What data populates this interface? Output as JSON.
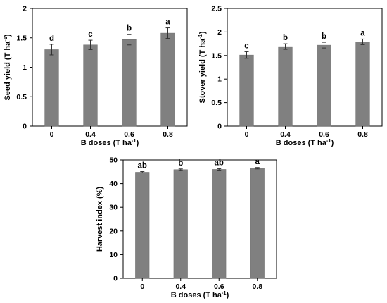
{
  "colors": {
    "bar": "#808080",
    "bar_edge": "#6e6e6e",
    "error_bar": "#333333",
    "frame": "#000000"
  },
  "chart_data": [
    {
      "type": "bar",
      "title": "",
      "xlabel": "B doses (T ha-1)",
      "xlabel_main": "B doses (T ha",
      "xlabel_sup": "-1",
      "xlabel_close": ")",
      "ylabel": "Seed yield (T ha-1)",
      "ylabel_main": "Seed yield (T ha",
      "ylabel_sup": "-1",
      "ylabel_close": ")",
      "categories": [
        "0",
        "0.4",
        "0.6",
        "0.8"
      ],
      "values": [
        1.3,
        1.38,
        1.47,
        1.58
      ],
      "errors": [
        0.09,
        0.08,
        0.09,
        0.09
      ],
      "significance": [
        "d",
        "c",
        "b",
        "a"
      ],
      "ylim": [
        0,
        2
      ],
      "yticks": [
        "0",
        "0.5",
        "1",
        "1.5",
        "2"
      ],
      "grid": false
    },
    {
      "type": "bar",
      "title": "",
      "xlabel": "B doses (T ha-1)",
      "xlabel_main": "B doses (T ha",
      "xlabel_sup": "-1",
      "xlabel_close": ")",
      "ylabel": "Stover yield (T ha-1)",
      "ylabel_main": "Stover yield (T ha",
      "ylabel_sup": "-1",
      "ylabel_close": ")",
      "categories": [
        "0",
        "0.4",
        "0.6",
        "0.8"
      ],
      "values": [
        1.51,
        1.69,
        1.72,
        1.79
      ],
      "errors": [
        0.07,
        0.06,
        0.06,
        0.06
      ],
      "significance": [
        "c",
        "b",
        "b",
        "a"
      ],
      "ylim": [
        0,
        2.5
      ],
      "yticks": [
        "0",
        "0.5",
        "1",
        "1.5",
        "2",
        "2.5"
      ],
      "grid": false
    },
    {
      "type": "bar",
      "title": "",
      "xlabel": "B doses (T ha-1)",
      "xlabel_main": "B doses (T ha",
      "xlabel_sup": "-1",
      "xlabel_close": ")",
      "ylabel": "Harvest index (%)",
      "ylabel_main": "Harvest index (%)",
      "ylabel_sup": "",
      "ylabel_close": "",
      "categories": [
        "0",
        "0.4",
        "0.6",
        "0.8"
      ],
      "values": [
        44.8,
        45.9,
        46.0,
        46.5
      ],
      "errors": [
        0.3,
        0.3,
        0.3,
        0.3
      ],
      "significance": [
        "ab",
        "b",
        "ab",
        "a"
      ],
      "ylim": [
        0,
        50
      ],
      "yticks": [
        "0",
        "10",
        "20",
        "30",
        "40",
        "50"
      ],
      "grid": false
    }
  ]
}
